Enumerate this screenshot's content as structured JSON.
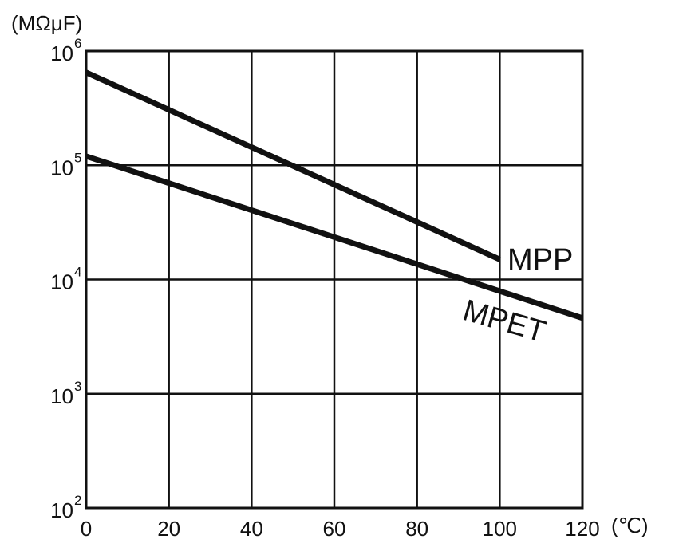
{
  "chart_data": {
    "type": "line",
    "title": "",
    "ylabel": "(MΩμF)",
    "x_unit_label": "(℃)",
    "x_ticks": [
      0,
      20,
      40,
      60,
      80,
      100,
      120
    ],
    "x_tick_labels": [
      "0",
      "20",
      "40",
      "60",
      "80",
      "100",
      "120"
    ],
    "xlim": [
      0,
      120
    ],
    "y_scale": "log",
    "ylim": [
      100,
      1000000
    ],
    "y_ticks": [
      {
        "value": 1000000,
        "base": "10",
        "exp": "6"
      },
      {
        "value": 100000,
        "base": "10",
        "exp": "5"
      },
      {
        "value": 10000,
        "base": "10",
        "exp": "4"
      },
      {
        "value": 1000,
        "base": "10",
        "exp": "3"
      },
      {
        "value": 100,
        "base": "10",
        "exp": "2"
      }
    ],
    "grid": true,
    "series": [
      {
        "name": "MPP",
        "x": [
          0,
          100
        ],
        "y": [
          650000,
          15000
        ]
      },
      {
        "name": "MPET",
        "x": [
          0,
          120
        ],
        "y": [
          120000,
          4600
        ]
      }
    ],
    "line_color": "#111111"
  }
}
